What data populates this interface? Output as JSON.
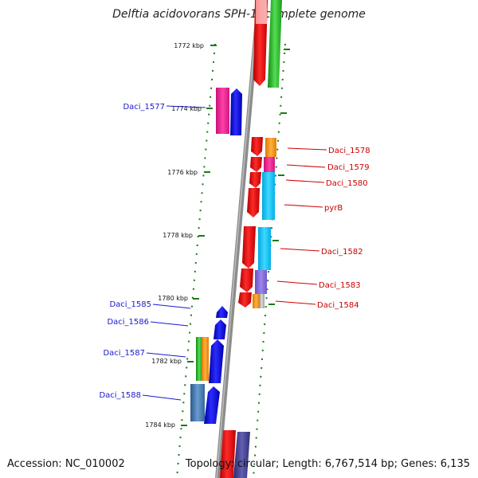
{
  "title": "Delftia acidovorans SPH-1, complete genome",
  "accession": "Accession: NC_010002",
  "summary": "Topology: circular; Length: 6,767,514 bp; Genes: 6,135",
  "ticks": [
    "1772 kbp",
    "1774 kbp",
    "1776 kbp",
    "1778 kbp",
    "1780 kbp",
    "1782 kbp",
    "1784 kbp"
  ],
  "genes": [
    {
      "label": "Daci_1577",
      "color": "#1a1acc"
    },
    {
      "label": "Daci_1578",
      "color": "#cc0000"
    },
    {
      "label": "Daci_1579",
      "color": "#cc0000"
    },
    {
      "label": "Daci_1580",
      "color": "#cc0000"
    },
    {
      "label": "pyrB",
      "color": "#cc0000"
    },
    {
      "label": "Daci_1582",
      "color": "#cc0000"
    },
    {
      "label": "Daci_1583",
      "color": "#cc0000"
    },
    {
      "label": "Daci_1584",
      "color": "#cc0000"
    },
    {
      "label": "Daci_1585",
      "color": "#1a1acc"
    },
    {
      "label": "Daci_1586",
      "color": "#1a1acc"
    },
    {
      "label": "Daci_1587",
      "color": "#1a1acc"
    },
    {
      "label": "Daci_1588",
      "color": "#1a1acc"
    }
  ],
  "colors": {
    "backbone": "#808080",
    "forward": "#0000ee",
    "reverse": "#ee0000",
    "tick": "#1a7a1a"
  }
}
